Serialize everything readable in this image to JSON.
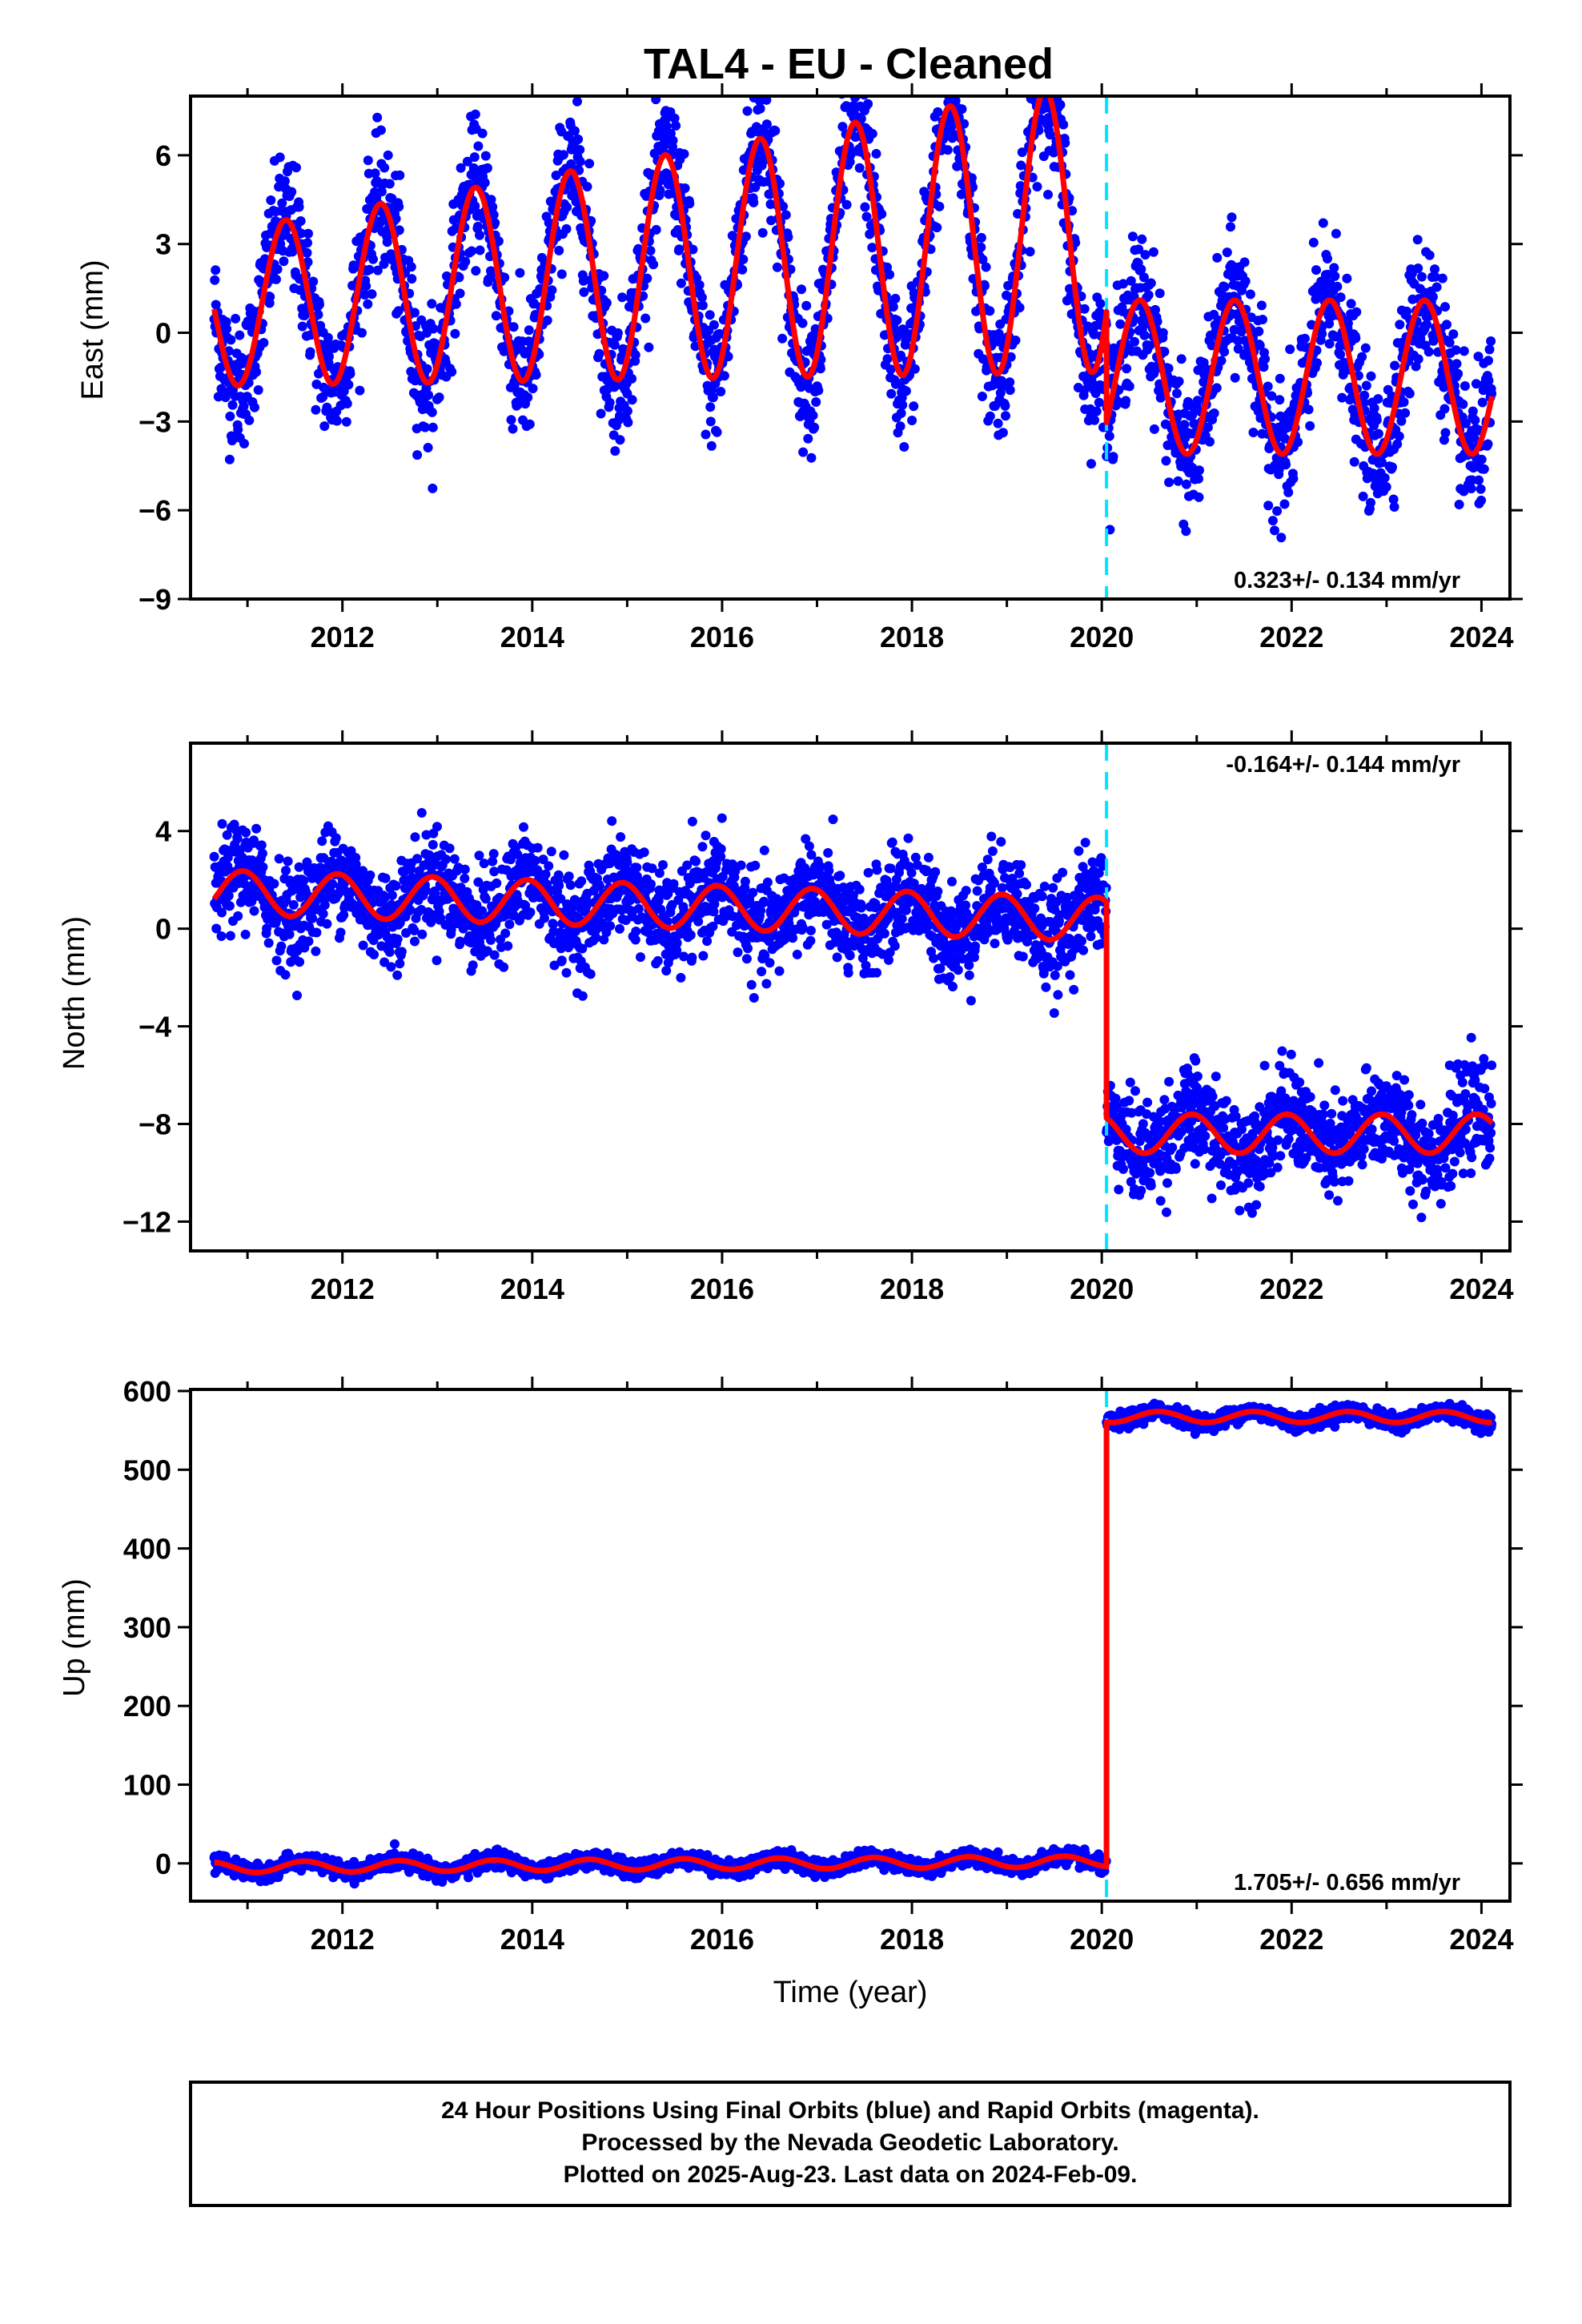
{
  "title": "TAL4  - EU - Cleaned",
  "colors": {
    "dots": "#0000ff",
    "model": "#ff0000",
    "break": "#00e5ff",
    "frame": "#000000"
  },
  "chart_data": [
    {
      "type": "scatter",
      "component": "east",
      "ylabel": "East (mm)",
      "xlim": [
        2010.4,
        2024.3
      ],
      "ylim": [
        -9,
        8
      ],
      "yticks": [
        -9,
        -6,
        -3,
        0,
        3,
        6
      ],
      "xticks": [
        2012,
        2014,
        2016,
        2018,
        2020,
        2022,
        2024
      ],
      "break_epoch": 2020.05,
      "rate_text": "0.323+/- 0.134 mm/yr",
      "rate_position": "bottom-right",
      "model": {
        "pre_offset": 0.8,
        "pre_trend": 0.3,
        "pre_amp_start": 2.6,
        "pre_amp_growth": 0.25,
        "post_offset": -1.5,
        "post_trend": 0.0,
        "post_amp": 2.6,
        "phase_peak": 0.4,
        "noise": 1.1
      }
    },
    {
      "type": "scatter",
      "component": "north",
      "ylabel": "North (mm)",
      "xlim": [
        2010.4,
        2024.3
      ],
      "ylim": [
        -13.2,
        7.6
      ],
      "yticks": [
        -12,
        -8,
        -4,
        0,
        4
      ],
      "xticks": [
        2012,
        2014,
        2016,
        2018,
        2020,
        2022,
        2024
      ],
      "break_epoch": 2020.05,
      "rate_text": "-0.164+/- 0.144 mm/yr",
      "rate_position": "top-right",
      "model": {
        "pre_offset": 1.5,
        "pre_trend": -0.12,
        "pre_amp_start": 0.9,
        "pre_amp_growth": 0.0,
        "post_offset": -8.4,
        "post_trend": 0.0,
        "post_amp": 0.8,
        "phase_peak": 0.95,
        "noise": 1.0
      }
    },
    {
      "type": "scatter",
      "component": "up",
      "ylabel": "Up (mm)",
      "xlabel": "Time (year)",
      "xlim": [
        2010.4,
        2024.3
      ],
      "ylim": [
        -48,
        602
      ],
      "yticks": [
        0,
        100,
        200,
        300,
        400,
        500,
        600
      ],
      "xticks": [
        2012,
        2014,
        2016,
        2018,
        2020,
        2022,
        2024
      ],
      "break_epoch": 2020.05,
      "rate_text": "1.705+/- 0.656 mm/yr",
      "rate_position": "bottom-right",
      "model": {
        "pre_offset": -5,
        "pre_trend": 0.8,
        "pre_amp_start": 7,
        "pre_amp_growth": 0.0,
        "post_offset": 567,
        "post_trend": 0.0,
        "post_amp": 7,
        "phase_peak": 0.6,
        "noise": 5
      }
    }
  ],
  "footer": {
    "line1": "24 Hour Positions Using Final Orbits (blue) and Rapid Orbits (magenta).",
    "line2": "Processed by the Nevada Geodetic Laboratory.",
    "line3": "Plotted on 2025-Aug-23. Last data on 2024-Feb-09."
  }
}
